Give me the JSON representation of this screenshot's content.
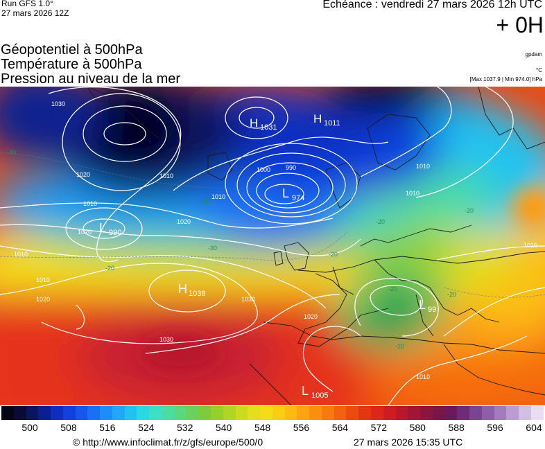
{
  "header": {
    "run": "Run GFS 1.0°",
    "run_date": "27 mars 2026 12Z",
    "echeance": "Echéance : vendredi 27 mars 2026 12h UTC",
    "offset": "+ 0H"
  },
  "titles": [
    "Géopotentiel à 500hPa",
    "Température à 500hPa",
    "Pression au niveau de la mer"
  ],
  "units": {
    "geopotential": "gpdam",
    "temperature": "°C",
    "pressure": "[Max 1037.9 | Min 974.0] hPa"
  },
  "centers": [
    {
      "type": "H",
      "value": "1031"
    },
    {
      "type": "H",
      "value": "1011"
    },
    {
      "type": "L",
      "value": "974"
    },
    {
      "type": "L",
      "value": "990"
    },
    {
      "type": "H",
      "value": "1038"
    },
    {
      "type": "L",
      "value": "99"
    },
    {
      "type": "L",
      "value": "1005"
    }
  ],
  "isobar_labels": [
    "1030",
    "1020",
    "1010",
    "1010",
    "1010",
    "1020",
    "1020",
    "1010",
    "1020",
    "1010",
    "1030",
    "1030",
    "1000",
    "990",
    "1020",
    "1010",
    "1010",
    "1010",
    "1010"
  ],
  "isotherm_labels": [
    "-40",
    "-30",
    "-20",
    "-30",
    "-20",
    "-20",
    "-20",
    "-20",
    "-20",
    "-20"
  ],
  "scale": {
    "colors": [
      "#050515",
      "#0a0a35",
      "#0a1560",
      "#0a2090",
      "#0d2fbf",
      "#1040dd",
      "#1557ec",
      "#1a70f5",
      "#1e8df7",
      "#20a8f5",
      "#22c2f0",
      "#2ad8e2",
      "#3de0c4",
      "#4cdca2",
      "#5ad77f",
      "#6ad15c",
      "#7ccc3c",
      "#95d02c",
      "#b0d624",
      "#ccdb1e",
      "#e4df1a",
      "#f5dd16",
      "#fbce13",
      "#fdbb11",
      "#fda510",
      "#fc8f0f",
      "#f8790f",
      "#f2610f",
      "#ec4a10",
      "#e53612",
      "#dd2518",
      "#cd1c22",
      "#b8172c",
      "#a31535",
      "#8d143f",
      "#781549",
      "#6a1a5c",
      "#6d2b78",
      "#7a4393",
      "#8e5ea9",
      "#a57bbf",
      "#bd9bd3",
      "#d5bee6",
      "#eadcf2"
    ],
    "ticks": [
      "500",
      "508",
      "516",
      "524",
      "532",
      "540",
      "548",
      "556",
      "564",
      "572",
      "580",
      "588",
      "596",
      "604"
    ]
  },
  "footer": {
    "credit": "© http://www.infoclimat.fr/z/gfs/europe/500/0",
    "generated": "27 mars 2026 15:35 UTC"
  }
}
